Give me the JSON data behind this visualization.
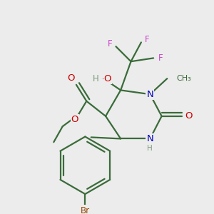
{
  "background_color": "#ececec",
  "bond_color": "#3a6b3a",
  "bond_width": 1.6,
  "atom_colors": {
    "C": "#3a6b3a",
    "H": "#7a9a7a",
    "O": "#cc0000",
    "N": "#0000bb",
    "F": "#cc44cc",
    "Br": "#994400"
  },
  "font_size": 8.5
}
